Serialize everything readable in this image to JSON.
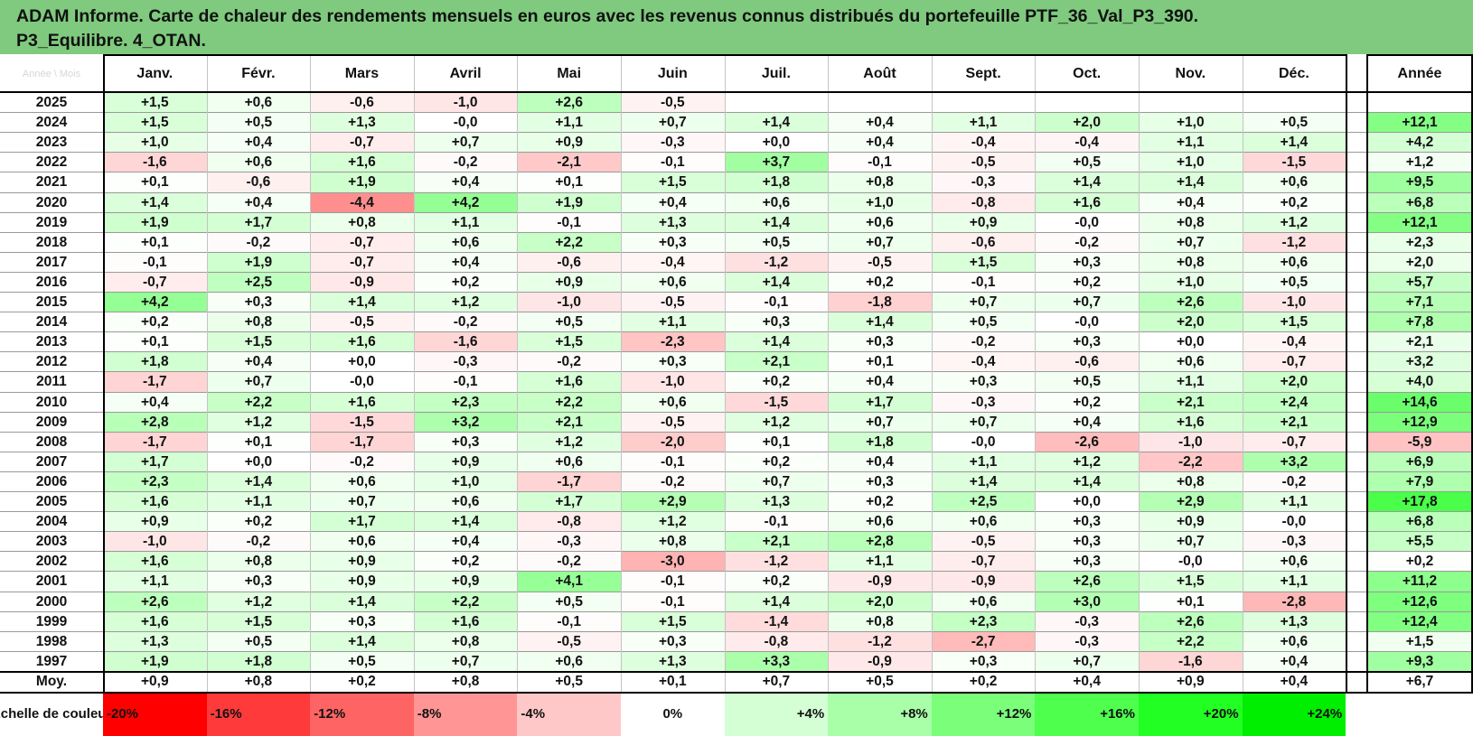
{
  "title": {
    "line1": "ADAM Informe. Carte de chaleur des rendements mensuels en euros avec les revenus connus distribués du portefeuille PTF_36_Val_P3_390.",
    "line2": "P3_Equilibre. 4_OTAN."
  },
  "corner_label": "Année \\ Mois",
  "year_header": "Année",
  "colors": {
    "title_bg": "#7fca7e",
    "neg_max": "#ff0000",
    "pos_max": "#00ff00",
    "neutral": "#ffffff"
  },
  "chart_data": {
    "type": "heatmap",
    "title": "ADAM Informe. Carte de chaleur des rendements mensuels en euros avec les revenus connus distribués du portefeuille PTF_36_Val_P3_390. P3_Equilibre. 4_OTAN.",
    "columns": [
      "Janv.",
      "Févr.",
      "Mars",
      "Avril",
      "Mai",
      "Juin",
      "Juil.",
      "Août",
      "Sept.",
      "Oct.",
      "Nov.",
      "Déc."
    ],
    "annual_column": "Année",
    "rows": [
      {
        "year": "2025",
        "months": [
          "+1,5",
          "+0,6",
          "-0,6",
          "-1,0",
          "+2,6",
          "-0,5",
          "",
          "",
          "",
          "",
          "",
          ""
        ],
        "annual": ""
      },
      {
        "year": "2024",
        "months": [
          "+1,5",
          "+0,5",
          "+1,3",
          "-0,0",
          "+1,1",
          "+0,7",
          "+1,4",
          "+0,4",
          "+1,1",
          "+2,0",
          "+1,0",
          "+0,5"
        ],
        "annual": "+12,1"
      },
      {
        "year": "2023",
        "months": [
          "+1,0",
          "+0,4",
          "-0,7",
          "+0,7",
          "+0,9",
          "-0,3",
          "+0,0",
          "+0,4",
          "-0,4",
          "-0,4",
          "+1,1",
          "+1,4"
        ],
        "annual": "+4,2"
      },
      {
        "year": "2022",
        "months": [
          "-1,6",
          "+0,6",
          "+1,6",
          "-0,2",
          "-2,1",
          "-0,1",
          "+3,7",
          "-0,1",
          "-0,5",
          "+0,5",
          "+1,0",
          "-1,5"
        ],
        "annual": "+1,2"
      },
      {
        "year": "2021",
        "months": [
          "+0,1",
          "-0,6",
          "+1,9",
          "+0,4",
          "+0,1",
          "+1,5",
          "+1,8",
          "+0,8",
          "-0,3",
          "+1,4",
          "+1,4",
          "+0,6"
        ],
        "annual": "+9,5"
      },
      {
        "year": "2020",
        "months": [
          "+1,4",
          "+0,4",
          "-4,4",
          "+4,2",
          "+1,9",
          "+0,4",
          "+0,6",
          "+1,0",
          "-0,8",
          "+1,6",
          "+0,4",
          "+0,2"
        ],
        "annual": "+6,8"
      },
      {
        "year": "2019",
        "months": [
          "+1,9",
          "+1,7",
          "+0,8",
          "+1,1",
          "-0,1",
          "+1,3",
          "+1,4",
          "+0,6",
          "+0,9",
          "-0,0",
          "+0,8",
          "+1,2"
        ],
        "annual": "+12,1"
      },
      {
        "year": "2018",
        "months": [
          "+0,1",
          "-0,2",
          "-0,7",
          "+0,6",
          "+2,2",
          "+0,3",
          "+0,5",
          "+0,7",
          "-0,6",
          "-0,2",
          "+0,7",
          "-1,2"
        ],
        "annual": "+2,3"
      },
      {
        "year": "2017",
        "months": [
          "-0,1",
          "+1,9",
          "-0,7",
          "+0,4",
          "-0,6",
          "-0,4",
          "-1,2",
          "-0,5",
          "+1,5",
          "+0,3",
          "+0,8",
          "+0,6"
        ],
        "annual": "+2,0"
      },
      {
        "year": "2016",
        "months": [
          "-0,7",
          "+2,5",
          "-0,9",
          "+0,2",
          "+0,9",
          "+0,6",
          "+1,4",
          "+0,2",
          "-0,1",
          "+0,2",
          "+1,0",
          "+0,5"
        ],
        "annual": "+5,7"
      },
      {
        "year": "2015",
        "months": [
          "+4,2",
          "+0,3",
          "+1,4",
          "+1,2",
          "-1,0",
          "-0,5",
          "-0,1",
          "-1,8",
          "+0,7",
          "+0,7",
          "+2,6",
          "-1,0"
        ],
        "annual": "+7,1"
      },
      {
        "year": "2014",
        "months": [
          "+0,2",
          "+0,8",
          "-0,5",
          "-0,2",
          "+0,5",
          "+1,1",
          "+0,3",
          "+1,4",
          "+0,5",
          "-0,0",
          "+2,0",
          "+1,5"
        ],
        "annual": "+7,8"
      },
      {
        "year": "2013",
        "months": [
          "+0,1",
          "+1,5",
          "+1,6",
          "-1,6",
          "+1,5",
          "-2,3",
          "+1,4",
          "+0,3",
          "-0,2",
          "+0,3",
          "+0,0",
          "-0,4"
        ],
        "annual": "+2,1"
      },
      {
        "year": "2012",
        "months": [
          "+1,8",
          "+0,4",
          "+0,0",
          "-0,3",
          "-0,2",
          "+0,3",
          "+2,1",
          "+0,1",
          "-0,4",
          "-0,6",
          "+0,6",
          "-0,7"
        ],
        "annual": "+3,2"
      },
      {
        "year": "2011",
        "months": [
          "-1,7",
          "+0,7",
          "-0,0",
          "-0,1",
          "+1,6",
          "-1,0",
          "+0,2",
          "+0,4",
          "+0,3",
          "+0,5",
          "+1,1",
          "+2,0"
        ],
        "annual": "+4,0"
      },
      {
        "year": "2010",
        "months": [
          "+0,4",
          "+2,2",
          "+1,6",
          "+2,3",
          "+2,2",
          "+0,6",
          "-1,5",
          "+1,7",
          "-0,3",
          "+0,2",
          "+2,1",
          "+2,4"
        ],
        "annual": "+14,6"
      },
      {
        "year": "2009",
        "months": [
          "+2,8",
          "+1,2",
          "-1,5",
          "+3,2",
          "+2,1",
          "-0,5",
          "+1,2",
          "+0,7",
          "+0,7",
          "+0,4",
          "+1,6",
          "+2,1"
        ],
        "annual": "+12,9"
      },
      {
        "year": "2008",
        "months": [
          "-1,7",
          "+0,1",
          "-1,7",
          "+0,3",
          "+1,2",
          "-2,0",
          "+0,1",
          "+1,8",
          "-0,0",
          "-2,6",
          "-1,0",
          "-0,7"
        ],
        "annual": "-5,9"
      },
      {
        "year": "2007",
        "months": [
          "+1,7",
          "+0,0",
          "-0,2",
          "+0,9",
          "+0,6",
          "-0,1",
          "+0,2",
          "+0,4",
          "+1,1",
          "+1,2",
          "-2,2",
          "+3,2"
        ],
        "annual": "+6,9"
      },
      {
        "year": "2006",
        "months": [
          "+2,3",
          "+1,4",
          "+0,6",
          "+1,0",
          "-1,7",
          "-0,2",
          "+0,7",
          "+0,3",
          "+1,4",
          "+1,4",
          "+0,8",
          "-0,2"
        ],
        "annual": "+7,9"
      },
      {
        "year": "2005",
        "months": [
          "+1,6",
          "+1,1",
          "+0,7",
          "+0,6",
          "+1,7",
          "+2,9",
          "+1,3",
          "+0,2",
          "+2,5",
          "+0,0",
          "+2,9",
          "+1,1"
        ],
        "annual": "+17,8"
      },
      {
        "year": "2004",
        "months": [
          "+0,9",
          "+0,2",
          "+1,7",
          "+1,4",
          "-0,8",
          "+1,2",
          "-0,1",
          "+0,6",
          "+0,6",
          "+0,3",
          "+0,9",
          "-0,0"
        ],
        "annual": "+6,8"
      },
      {
        "year": "2003",
        "months": [
          "-1,0",
          "-0,2",
          "+0,6",
          "+0,4",
          "-0,3",
          "+0,8",
          "+2,1",
          "+2,8",
          "-0,5",
          "+0,3",
          "+0,7",
          "-0,3"
        ],
        "annual": "+5,5"
      },
      {
        "year": "2002",
        "months": [
          "+1,6",
          "+0,8",
          "+0,9",
          "+0,2",
          "-0,2",
          "-3,0",
          "-1,2",
          "+1,1",
          "-0,7",
          "+0,3",
          "-0,0",
          "+0,6"
        ],
        "annual": "+0,2"
      },
      {
        "year": "2001",
        "months": [
          "+1,1",
          "+0,3",
          "+0,9",
          "+0,9",
          "+4,1",
          "-0,1",
          "+0,2",
          "-0,9",
          "-0,9",
          "+2,6",
          "+1,5",
          "+1,1"
        ],
        "annual": "+11,2"
      },
      {
        "year": "2000",
        "months": [
          "+2,6",
          "+1,2",
          "+1,4",
          "+2,2",
          "+0,5",
          "-0,1",
          "+1,4",
          "+2,0",
          "+0,6",
          "+3,0",
          "+0,1",
          "-2,8"
        ],
        "annual": "+12,6"
      },
      {
        "year": "1999",
        "months": [
          "+1,6",
          "+1,5",
          "+0,3",
          "+1,6",
          "-0,1",
          "+1,5",
          "-1,4",
          "+0,8",
          "+2,3",
          "-0,3",
          "+2,6",
          "+1,3"
        ],
        "annual": "+12,4"
      },
      {
        "year": "1998",
        "months": [
          "+1,3",
          "+0,5",
          "+1,4",
          "+0,8",
          "-0,5",
          "+0,3",
          "-0,8",
          "-1,2",
          "-2,7",
          "-0,3",
          "+2,2",
          "+0,6"
        ],
        "annual": "+1,5"
      },
      {
        "year": "1997",
        "months": [
          "+1,9",
          "+1,8",
          "+0,5",
          "+0,7",
          "+0,6",
          "+1,3",
          "+3,3",
          "-0,9",
          "+0,3",
          "+0,7",
          "-1,6",
          "+0,4"
        ],
        "annual": "+9,3"
      }
    ],
    "average_row": {
      "label": "Moy.",
      "months": [
        "+0,9",
        "+0,8",
        "+0,2",
        "+0,8",
        "+0,5",
        "+0,1",
        "+0,7",
        "+0,5",
        "+0,2",
        "+0,4",
        "+0,9",
        "+0,4"
      ],
      "annual": "+6,7"
    },
    "color_scale": {
      "label": "Echelle de couleur",
      "stops": [
        {
          "label": "-20%",
          "value": -20,
          "color": "#ff0000"
        },
        {
          "label": "-16%",
          "value": -16,
          "color": "#ff3a3a"
        },
        {
          "label": "-12%",
          "value": -12,
          "color": "#ff6464"
        },
        {
          "label": "-8%",
          "value": -8,
          "color": "#ff9595"
        },
        {
          "label": "-4%",
          "value": -4,
          "color": "#ffc8c8"
        },
        {
          "label": "0%",
          "value": 0,
          "color": "#ffffff"
        },
        {
          "label": "+4%",
          "value": 4,
          "color": "#d4ffd4"
        },
        {
          "label": "+8%",
          "value": 8,
          "color": "#a8ffa8"
        },
        {
          "label": "+12%",
          "value": 12,
          "color": "#7bff7b"
        },
        {
          "label": "+16%",
          "value": 16,
          "color": "#4eff4e"
        },
        {
          "label": "+20%",
          "value": 20,
          "color": "#22ff22"
        },
        {
          "label": "+24%",
          "value": 24,
          "color": "#00ee00"
        }
      ]
    }
  }
}
